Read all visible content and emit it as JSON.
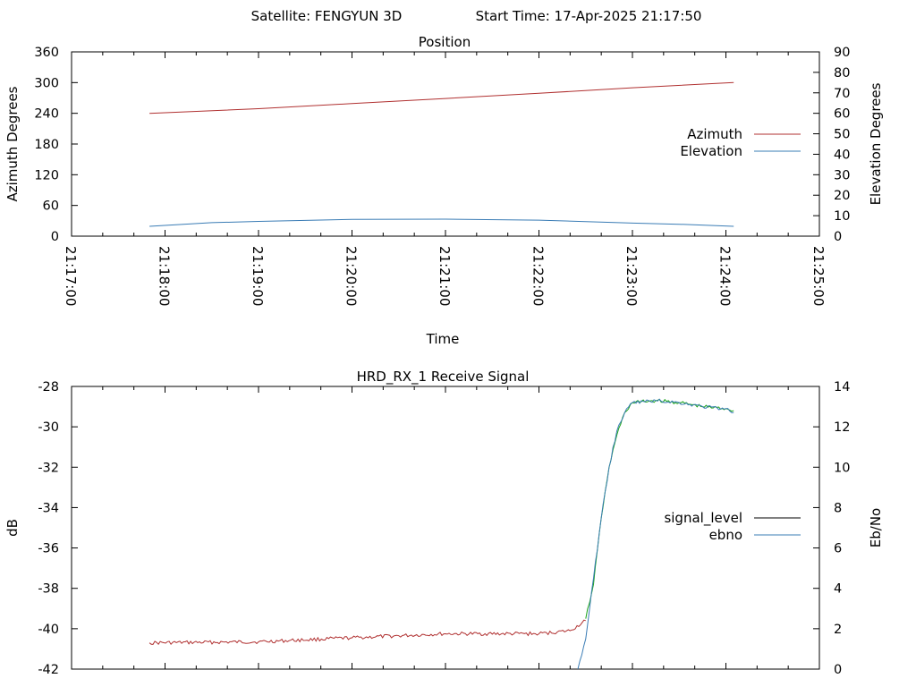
{
  "header": {
    "satellite": "Satellite: FENGYUN 3D",
    "start_time": "Start Time: 17-Apr-2025 21:17:50"
  },
  "chart_data": [
    {
      "type": "line",
      "title": "Position",
      "xlabel": "Time",
      "ylabel": "Azimuth Degrees",
      "y2label": "Elevation Degrees",
      "x_ticks": [
        "21:17:00",
        "21:18:00",
        "21:19:00",
        "21:20:00",
        "21:21:00",
        "21:22:00",
        "21:23:00",
        "21:24:00",
        "21:25:00"
      ],
      "xlim": [
        "21:17:00",
        "21:25:00"
      ],
      "ylim": [
        0,
        360
      ],
      "y_ticks": [
        0,
        60,
        120,
        180,
        240,
        300,
        360
      ],
      "y2lim": [
        0,
        90
      ],
      "y2_ticks": [
        0,
        10,
        20,
        30,
        40,
        50,
        60,
        70,
        80,
        90
      ],
      "grid": false,
      "legend_position": "right",
      "series": [
        {
          "name": "Azimuth",
          "axis": "left",
          "color": "#b03030",
          "x": [
            "21:17:50",
            "21:19:00",
            "21:20:00",
            "21:21:00",
            "21:22:00",
            "21:23:00",
            "21:24:05"
          ],
          "values": [
            240,
            249,
            259,
            269,
            279,
            290,
            300
          ]
        },
        {
          "name": "Elevation",
          "axis": "right",
          "color": "#3a7cb5",
          "x": [
            "21:17:50",
            "21:18:30",
            "21:19:00",
            "21:20:00",
            "21:21:00",
            "21:22:00",
            "21:23:00",
            "21:23:30",
            "21:24:05"
          ],
          "values": [
            4.8,
            6.6,
            7.2,
            8.2,
            8.3,
            7.8,
            6.4,
            5.8,
            4.8
          ]
        }
      ]
    },
    {
      "type": "line",
      "title": "HRD_RX_1 Receive Signal",
      "xlabel": "",
      "ylabel": "dB",
      "y2label": "Eb/No",
      "ylim": [
        -42,
        -28
      ],
      "y_ticks": [
        -42,
        -40,
        -38,
        -36,
        -34,
        -32,
        -30,
        -28
      ],
      "y2lim": [
        0,
        14
      ],
      "y2_ticks": [
        0,
        2,
        4,
        6,
        8,
        10,
        12,
        14
      ],
      "grid": false,
      "legend_position": "right",
      "legend": [
        {
          "name": "signal_level",
          "color": "#000000"
        },
        {
          "name": "ebno",
          "color": "#3a7cb5"
        }
      ],
      "series": [
        {
          "name": "signal_level (low)",
          "axis": "left",
          "color": "#b03030",
          "x": [
            "21:17:50",
            "21:19:00",
            "21:20:00",
            "21:21:00",
            "21:22:00",
            "21:22:20",
            "21:22:30"
          ],
          "values": [
            -40.7,
            -40.65,
            -40.45,
            -40.25,
            -40.25,
            -40.1,
            -39.6
          ]
        },
        {
          "name": "signal_level (high)",
          "axis": "left",
          "color": "#1aa31a",
          "x": [
            "21:22:30",
            "21:22:35",
            "21:22:40",
            "21:22:45",
            "21:22:50",
            "21:22:55",
            "21:23:00",
            "21:23:15",
            "21:23:30",
            "21:23:45",
            "21:24:00",
            "21:24:05"
          ],
          "values": [
            -39.5,
            -37.8,
            -34.5,
            -32.0,
            -30.4,
            -29.3,
            -28.8,
            -28.7,
            -28.8,
            -29.0,
            -29.1,
            -29.2
          ]
        },
        {
          "name": "ebno",
          "axis": "right",
          "color": "#3a7cb5",
          "x": [
            "21:22:25",
            "21:22:30",
            "21:22:35",
            "21:22:40",
            "21:22:45",
            "21:22:50",
            "21:22:55",
            "21:23:00",
            "21:23:15",
            "21:23:30",
            "21:23:45",
            "21:24:00",
            "21:24:05"
          ],
          "values": [
            0,
            1.5,
            4.5,
            7.5,
            10.0,
            11.8,
            12.7,
            13.2,
            13.3,
            13.2,
            13.0,
            12.9,
            12.7
          ]
        }
      ]
    }
  ]
}
